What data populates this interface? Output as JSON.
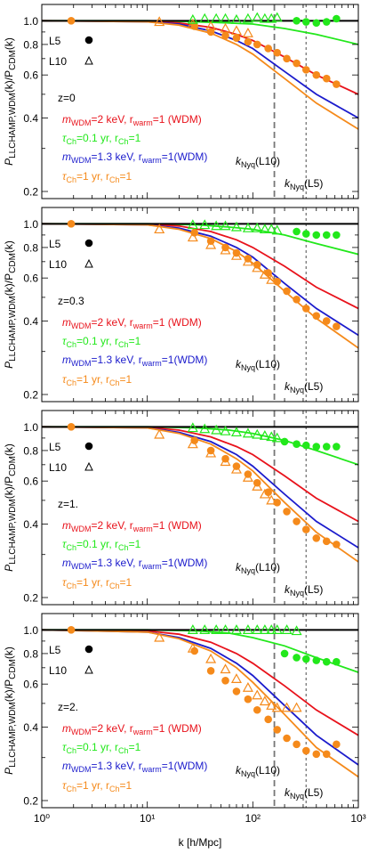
{
  "figure": {
    "ylabel_main": "P",
    "ylabel_sub": "LLCHAMP,WDM",
    "ylabel_mid": "(k)/P",
    "ylabel_sub2": "CDM",
    "ylabel_end": "(k)",
    "xlabel": "k [h/Mpc]"
  },
  "colors": {
    "wdm2": "#e8121b",
    "ch01": "#22e81b",
    "wdm13": "#1b1bcc",
    "ch1": "#f58a1b",
    "ref": "#000000",
    "nyq": "#777777"
  },
  "markers": {
    "L5": "L5",
    "L10": "L10"
  },
  "legend": {
    "wdm2_a": "m",
    "wdm2_b": "WDM",
    "wdm2_c": "=2 keV, r",
    "wdm2_d": "warm",
    "wdm2_e": "=1 (WDM)",
    "ch01_a": "τ",
    "ch01_b": "Ch",
    "ch01_c": "=0.1 yr, r",
    "ch01_d": "Ch",
    "ch01_e": "=1",
    "wdm13_a": "m",
    "wdm13_b": "WDM",
    "wdm13_c": "=1.3 keV, r",
    "wdm13_d": "warm",
    "wdm13_e": "=1(WDM)",
    "ch1_a": "τ",
    "ch1_b": "Ch",
    "ch1_c": "=1 yr, r",
    "ch1_d": "Ch",
    "ch1_e": "=1"
  },
  "nyq": {
    "k": "k",
    "sub": "Nyq",
    "L10": "(L10)",
    "L5": "(L5)"
  },
  "chart_data": [
    {
      "type": "line",
      "redshift_label": "z=0",
      "x_scale": "log",
      "y_scale": "log",
      "xlim": [
        1,
        1000
      ],
      "ylim": [
        0.2,
        1.1
      ],
      "yticks": [
        "0.2",
        "0.4",
        "0.6",
        "0.8",
        "1.0"
      ],
      "nyquist_k": {
        "L10": 160,
        "L5": 320
      },
      "curves": [
        {
          "key": "ch01",
          "k": [
            1,
            10,
            30,
            60,
            100,
            200,
            400,
            1000
          ],
          "ratio": [
            1.0,
            1.0,
            0.99,
            0.98,
            0.97,
            0.93,
            0.88,
            0.8
          ]
        },
        {
          "key": "wdm2",
          "k": [
            1,
            10,
            20,
            40,
            70,
            100,
            200,
            400,
            1000
          ],
          "ratio": [
            1.0,
            0.995,
            0.98,
            0.94,
            0.88,
            0.83,
            0.71,
            0.6,
            0.5
          ]
        },
        {
          "key": "wdm13",
          "k": [
            1,
            10,
            20,
            40,
            70,
            100,
            200,
            400,
            1000
          ],
          "ratio": [
            1.0,
            0.99,
            0.97,
            0.91,
            0.83,
            0.77,
            0.62,
            0.5,
            0.4
          ]
        },
        {
          "key": "ch1",
          "k": [
            1,
            10,
            20,
            40,
            70,
            100,
            200,
            400,
            1000
          ],
          "ratio": [
            1.0,
            0.99,
            0.96,
            0.89,
            0.8,
            0.73,
            0.58,
            0.46,
            0.36
          ]
        }
      ],
      "points": [
        {
          "key": "ch1",
          "sim": "L5",
          "k": [
            1.9,
            28,
            40,
            55,
            70,
            90,
            110,
            140,
            170,
            210,
            260,
            320,
            400,
            500,
            620
          ],
          "ratio": [
            1.0,
            0.95,
            0.9,
            0.87,
            0.85,
            0.82,
            0.8,
            0.77,
            0.74,
            0.7,
            0.67,
            0.63,
            0.6,
            0.58,
            0.55
          ]
        },
        {
          "key": "ch01",
          "sim": "L5",
          "k": [
            260,
            320,
            400,
            500,
            620
          ],
          "ratio": [
            1.0,
            0.99,
            0.98,
            0.99,
            1.02
          ]
        },
        {
          "key": "ch1",
          "sim": "L10",
          "k": [
            13,
            27,
            40,
            55,
            70,
            90
          ],
          "ratio": [
            0.99,
            0.97,
            0.95,
            0.93,
            0.91,
            0.89
          ]
        },
        {
          "key": "ch01",
          "sim": "L10",
          "k": [
            27,
            35,
            45,
            55,
            70,
            90,
            110,
            130,
            150,
            170
          ],
          "ratio": [
            1.01,
            1.02,
            1.02,
            1.02,
            1.01,
            1.02,
            1.03,
            1.02,
            1.02,
            1.03
          ]
        }
      ]
    },
    {
      "type": "line",
      "redshift_label": "z=0.3",
      "x_scale": "log",
      "y_scale": "log",
      "xlim": [
        1,
        1000
      ],
      "ylim": [
        0.2,
        1.1
      ],
      "yticks": [
        "0.2",
        "0.4",
        "0.6",
        "0.8",
        "1.0"
      ],
      "nyquist_k": {
        "L10": 160,
        "L5": 320
      },
      "curves": [
        {
          "key": "ch01",
          "k": [
            1,
            10,
            30,
            60,
            100,
            200,
            400,
            1000
          ],
          "ratio": [
            1.0,
            1.0,
            0.99,
            0.97,
            0.95,
            0.9,
            0.83,
            0.75
          ]
        },
        {
          "key": "wdm2",
          "k": [
            1,
            10,
            20,
            40,
            70,
            100,
            200,
            400,
            1000
          ],
          "ratio": [
            1.0,
            0.995,
            0.98,
            0.93,
            0.86,
            0.8,
            0.67,
            0.55,
            0.45
          ]
        },
        {
          "key": "wdm13",
          "k": [
            1,
            10,
            20,
            40,
            70,
            100,
            200,
            400,
            1000
          ],
          "ratio": [
            1.0,
            0.99,
            0.96,
            0.89,
            0.8,
            0.73,
            0.57,
            0.45,
            0.35
          ]
        },
        {
          "key": "ch1",
          "k": [
            1,
            10,
            20,
            40,
            70,
            100,
            200,
            400,
            1000
          ],
          "ratio": [
            1.0,
            0.99,
            0.95,
            0.87,
            0.77,
            0.69,
            0.53,
            0.41,
            0.31
          ]
        }
      ],
      "points": [
        {
          "key": "ch1",
          "sim": "L5",
          "k": [
            1.9,
            28,
            40,
            55,
            70,
            90,
            110,
            140,
            170,
            210,
            260,
            320,
            400,
            500,
            620
          ],
          "ratio": [
            1.0,
            0.92,
            0.85,
            0.8,
            0.76,
            0.72,
            0.68,
            0.63,
            0.58,
            0.53,
            0.49,
            0.45,
            0.42,
            0.4,
            0.38
          ]
        },
        {
          "key": "ch01",
          "sim": "L5",
          "k": [
            260,
            320,
            400,
            500,
            620
          ],
          "ratio": [
            0.93,
            0.91,
            0.9,
            0.9,
            0.9
          ]
        },
        {
          "key": "ch1",
          "sim": "L10",
          "k": [
            13,
            27,
            40,
            55,
            70,
            90,
            110,
            130,
            150
          ],
          "ratio": [
            0.95,
            0.88,
            0.82,
            0.78,
            0.74,
            0.7,
            0.66,
            0.62,
            0.59
          ]
        },
        {
          "key": "ch01",
          "sim": "L10",
          "k": [
            27,
            35,
            45,
            55,
            70,
            90,
            110,
            130,
            150,
            170
          ],
          "ratio": [
            0.99,
            0.99,
            0.98,
            0.98,
            0.97,
            0.96,
            0.96,
            0.95,
            0.95,
            0.94
          ]
        }
      ]
    },
    {
      "type": "line",
      "redshift_label": "z=1.",
      "x_scale": "log",
      "y_scale": "log",
      "xlim": [
        1,
        1000
      ],
      "ylim": [
        0.2,
        1.1
      ],
      "yticks": [
        "0.2",
        "0.4",
        "0.6",
        "0.8",
        "1.0"
      ],
      "nyquist_k": {
        "L10": 160,
        "L5": 320
      },
      "curves": [
        {
          "key": "ch01",
          "k": [
            1,
            10,
            30,
            60,
            100,
            200,
            400,
            1000
          ],
          "ratio": [
            1.0,
            1.0,
            0.99,
            0.97,
            0.94,
            0.88,
            0.8,
            0.7
          ]
        },
        {
          "key": "wdm2",
          "k": [
            1,
            10,
            20,
            40,
            70,
            100,
            200,
            400,
            1000
          ],
          "ratio": [
            1.0,
            0.995,
            0.97,
            0.91,
            0.83,
            0.77,
            0.63,
            0.51,
            0.41
          ]
        },
        {
          "key": "wdm13",
          "k": [
            1,
            10,
            20,
            40,
            70,
            100,
            200,
            400,
            1000
          ],
          "ratio": [
            1.0,
            0.99,
            0.95,
            0.87,
            0.77,
            0.69,
            0.53,
            0.41,
            0.32
          ]
        },
        {
          "key": "ch1",
          "k": [
            1,
            10,
            20,
            40,
            70,
            100,
            200,
            400,
            1000
          ],
          "ratio": [
            1.0,
            0.99,
            0.94,
            0.85,
            0.74,
            0.66,
            0.49,
            0.37,
            0.28
          ]
        }
      ],
      "points": [
        {
          "key": "ch1",
          "sim": "L5",
          "k": [
            1.9,
            28,
            40,
            55,
            70,
            90,
            110,
            140,
            170,
            210,
            260,
            320,
            400,
            500,
            620
          ],
          "ratio": [
            1.0,
            0.88,
            0.8,
            0.74,
            0.69,
            0.64,
            0.59,
            0.54,
            0.49,
            0.45,
            0.41,
            0.38,
            0.35,
            0.34,
            0.33
          ]
        },
        {
          "key": "ch01",
          "sim": "L5",
          "k": [
            200,
            260,
            320,
            400,
            500,
            620
          ],
          "ratio": [
            0.87,
            0.85,
            0.84,
            0.83,
            0.83,
            0.83
          ]
        },
        {
          "key": "ch1",
          "sim": "L10",
          "k": [
            13,
            27,
            40,
            55,
            70,
            90,
            110,
            130,
            150
          ],
          "ratio": [
            0.93,
            0.85,
            0.78,
            0.72,
            0.67,
            0.62,
            0.57,
            0.53,
            0.5
          ]
        },
        {
          "key": "ch01",
          "sim": "L10",
          "k": [
            27,
            35,
            45,
            55,
            70,
            90,
            110,
            130,
            150,
            170
          ],
          "ratio": [
            0.99,
            0.98,
            0.97,
            0.96,
            0.95,
            0.94,
            0.93,
            0.92,
            0.91,
            0.9
          ]
        }
      ]
    },
    {
      "type": "line",
      "redshift_label": "z=2.",
      "x_scale": "log",
      "y_scale": "log",
      "xlim": [
        1,
        1000
      ],
      "ylim": [
        0.2,
        1.1
      ],
      "xticks": [
        "10⁰",
        "10¹",
        "10²",
        "10³"
      ],
      "yticks": [
        "0.2",
        "0.4",
        "0.6",
        "0.8",
        "1.0"
      ],
      "nyquist_k": {
        "L10": 160,
        "L5": 320
      },
      "curves": [
        {
          "key": "ch01",
          "k": [
            1,
            10,
            30,
            60,
            100,
            200,
            400,
            1000
          ],
          "ratio": [
            1.0,
            1.0,
            0.99,
            0.97,
            0.93,
            0.86,
            0.77,
            0.67
          ]
        },
        {
          "key": "wdm2",
          "k": [
            1,
            10,
            20,
            40,
            70,
            100,
            200,
            400,
            1000
          ],
          "ratio": [
            1.0,
            0.99,
            0.96,
            0.89,
            0.8,
            0.73,
            0.59,
            0.47,
            0.37
          ]
        },
        {
          "key": "wdm13",
          "k": [
            1,
            10,
            20,
            40,
            70,
            100,
            200,
            400,
            1000
          ],
          "ratio": [
            1.0,
            0.98,
            0.93,
            0.84,
            0.73,
            0.65,
            0.49,
            0.37,
            0.28
          ]
        },
        {
          "key": "ch1",
          "k": [
            1,
            10,
            20,
            40,
            70,
            100,
            200,
            400,
            1000
          ],
          "ratio": [
            1.0,
            0.98,
            0.92,
            0.82,
            0.7,
            0.61,
            0.45,
            0.33,
            0.25
          ]
        }
      ],
      "points": [
        {
          "key": "ch1",
          "sim": "L5",
          "k": [
            1.9,
            28,
            40,
            55,
            70,
            90,
            110,
            140,
            170,
            210,
            260,
            320,
            400,
            500,
            620
          ],
          "ratio": [
            1.0,
            0.82,
            0.68,
            0.62,
            0.56,
            0.52,
            0.47,
            0.43,
            0.39,
            0.36,
            0.34,
            0.32,
            0.31,
            0.31,
            0.34
          ]
        },
        {
          "key": "ch01",
          "sim": "L5",
          "k": [
            200,
            260,
            320,
            400,
            500,
            620
          ],
          "ratio": [
            0.8,
            0.77,
            0.76,
            0.75,
            0.74,
            0.74
          ]
        },
        {
          "key": "ch1",
          "sim": "L10",
          "k": [
            13,
            27,
            40,
            55,
            70,
            90,
            110,
            130,
            150,
            170,
            210,
            260
          ],
          "ratio": [
            0.93,
            0.84,
            0.76,
            0.69,
            0.63,
            0.58,
            0.54,
            0.51,
            0.49,
            0.48,
            0.48,
            0.48
          ]
        },
        {
          "key": "ch01",
          "sim": "L10",
          "k": [
            27,
            35,
            45,
            55,
            70,
            90,
            110,
            130,
            150,
            170,
            210,
            260
          ],
          "ratio": [
            1.0,
            1.0,
            1.0,
            1.0,
            1.0,
            1.0,
            1.0,
            1.0,
            1.0,
            1.0,
            1.0,
            0.99
          ]
        }
      ]
    }
  ]
}
